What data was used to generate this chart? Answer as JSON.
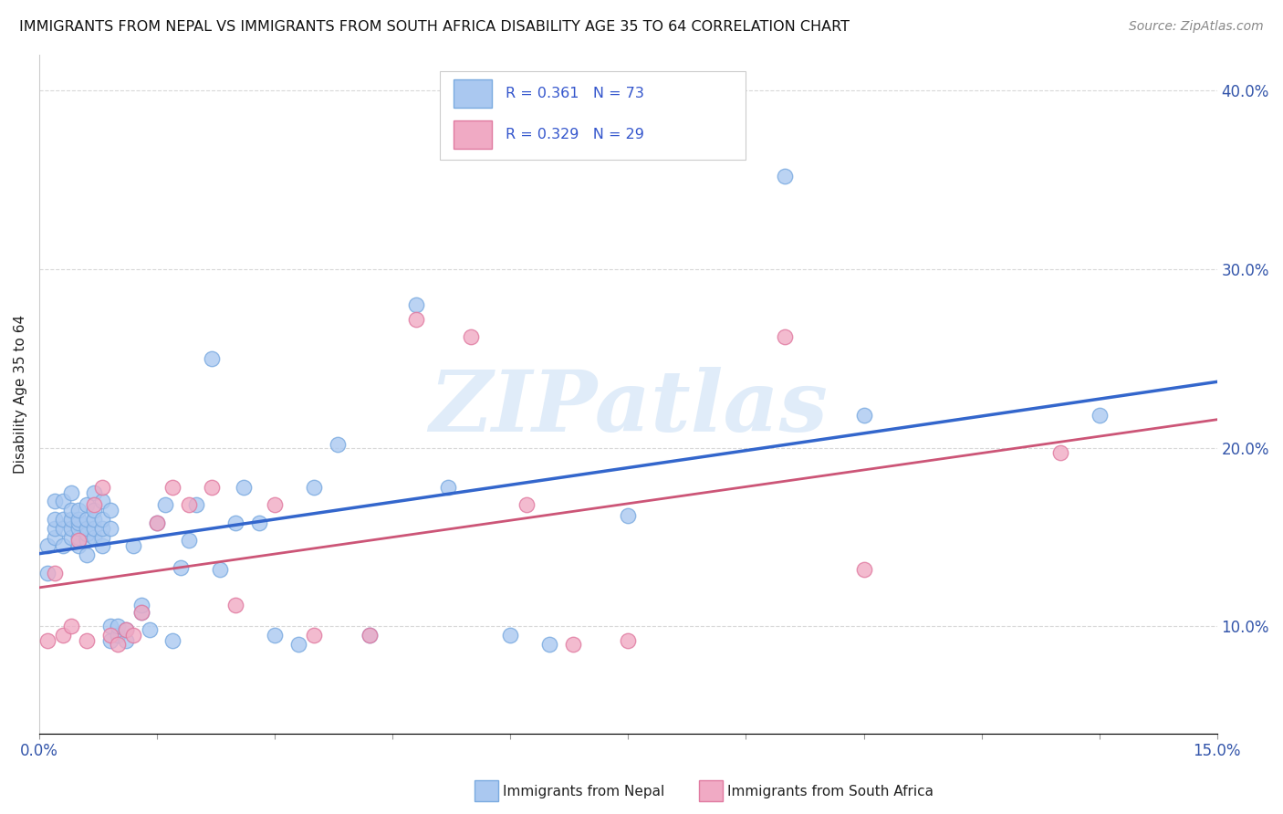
{
  "title": "IMMIGRANTS FROM NEPAL VS IMMIGRANTS FROM SOUTH AFRICA DISABILITY AGE 35 TO 64 CORRELATION CHART",
  "source": "Source: ZipAtlas.com",
  "ylabel": "Disability Age 35 to 64",
  "xlim": [
    0.0,
    0.15
  ],
  "ylim": [
    0.04,
    0.42
  ],
  "y_ticks": [
    0.1,
    0.2,
    0.3,
    0.4
  ],
  "y_tick_labels": [
    "10.0%",
    "20.0%",
    "30.0%",
    "40.0%"
  ],
  "nepal_color": "#aac8f0",
  "sa_color": "#f0aac4",
  "nepal_edge_color": "#7aaae0",
  "sa_edge_color": "#e07aa0",
  "line_nepal_color": "#3366cc",
  "line_sa_color": "#cc5577",
  "R_nepal": 0.361,
  "N_nepal": 73,
  "R_sa": 0.329,
  "N_sa": 29,
  "nepal_x": [
    0.001,
    0.001,
    0.002,
    0.002,
    0.002,
    0.002,
    0.003,
    0.003,
    0.003,
    0.003,
    0.004,
    0.004,
    0.004,
    0.004,
    0.004,
    0.005,
    0.005,
    0.005,
    0.005,
    0.005,
    0.005,
    0.006,
    0.006,
    0.006,
    0.006,
    0.006,
    0.006,
    0.007,
    0.007,
    0.007,
    0.007,
    0.007,
    0.008,
    0.008,
    0.008,
    0.008,
    0.008,
    0.009,
    0.009,
    0.009,
    0.009,
    0.01,
    0.01,
    0.011,
    0.011,
    0.012,
    0.013,
    0.013,
    0.014,
    0.015,
    0.016,
    0.017,
    0.018,
    0.019,
    0.02,
    0.022,
    0.023,
    0.025,
    0.026,
    0.028,
    0.03,
    0.033,
    0.035,
    0.038,
    0.042,
    0.048,
    0.052,
    0.06,
    0.065,
    0.075,
    0.095,
    0.105,
    0.135
  ],
  "nepal_y": [
    0.13,
    0.145,
    0.15,
    0.155,
    0.16,
    0.17,
    0.145,
    0.155,
    0.16,
    0.17,
    0.15,
    0.155,
    0.16,
    0.165,
    0.175,
    0.145,
    0.15,
    0.155,
    0.158,
    0.16,
    0.165,
    0.14,
    0.148,
    0.152,
    0.155,
    0.16,
    0.168,
    0.15,
    0.155,
    0.16,
    0.165,
    0.175,
    0.145,
    0.15,
    0.155,
    0.16,
    0.17,
    0.092,
    0.1,
    0.155,
    0.165,
    0.095,
    0.1,
    0.092,
    0.098,
    0.145,
    0.108,
    0.112,
    0.098,
    0.158,
    0.168,
    0.092,
    0.133,
    0.148,
    0.168,
    0.25,
    0.132,
    0.158,
    0.178,
    0.158,
    0.095,
    0.09,
    0.178,
    0.202,
    0.095,
    0.28,
    0.178,
    0.095,
    0.09,
    0.162,
    0.352,
    0.218,
    0.218
  ],
  "sa_x": [
    0.001,
    0.002,
    0.003,
    0.004,
    0.005,
    0.006,
    0.007,
    0.008,
    0.009,
    0.01,
    0.011,
    0.012,
    0.013,
    0.015,
    0.017,
    0.019,
    0.022,
    0.025,
    0.03,
    0.035,
    0.042,
    0.048,
    0.055,
    0.062,
    0.068,
    0.075,
    0.095,
    0.105,
    0.13
  ],
  "sa_y": [
    0.092,
    0.13,
    0.095,
    0.1,
    0.148,
    0.092,
    0.168,
    0.178,
    0.095,
    0.09,
    0.098,
    0.095,
    0.108,
    0.158,
    0.178,
    0.168,
    0.178,
    0.112,
    0.168,
    0.095,
    0.095,
    0.272,
    0.262,
    0.168,
    0.09,
    0.092,
    0.262,
    0.132,
    0.197
  ],
  "watermark_text": "ZIPatlas",
  "background_color": "#ffffff",
  "grid_color": "#d8d8d8"
}
